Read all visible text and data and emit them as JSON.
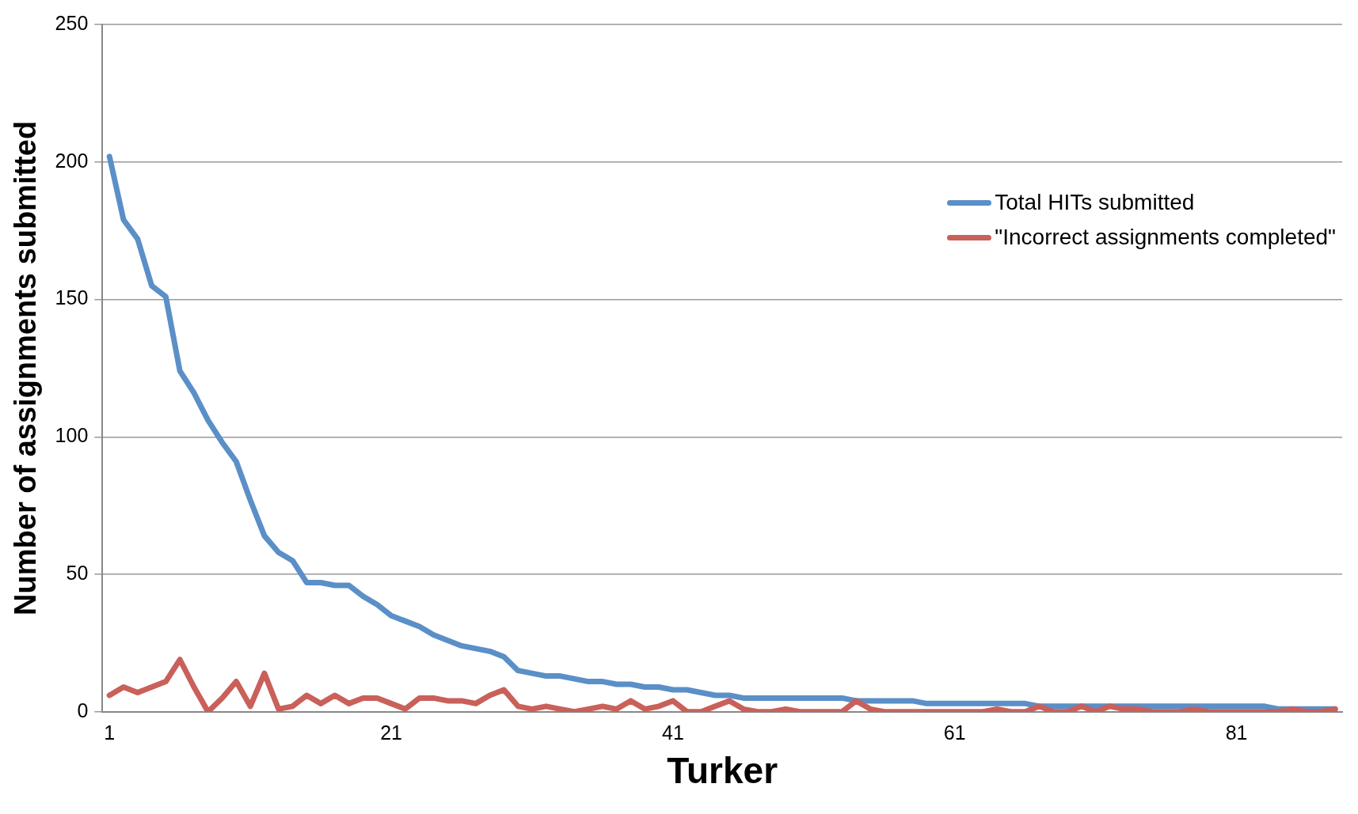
{
  "chart_data": {
    "type": "line",
    "xlabel": "Turker",
    "ylabel": "Number of assignments submitted",
    "categories": [
      "1",
      null,
      null,
      null,
      null,
      null,
      null,
      null,
      null,
      null,
      null,
      null,
      null,
      null,
      null,
      null,
      null,
      null,
      null,
      null,
      "21",
      null,
      null,
      null,
      null,
      null,
      null,
      null,
      null,
      null,
      null,
      null,
      null,
      null,
      null,
      null,
      null,
      null,
      null,
      null,
      "41",
      null,
      null,
      null,
      null,
      null,
      null,
      null,
      null,
      null,
      null,
      null,
      null,
      null,
      null,
      null,
      null,
      null,
      null,
      null,
      "61",
      null,
      null,
      null,
      null,
      null,
      null,
      null,
      null,
      null,
      null,
      null,
      null,
      null,
      null,
      null,
      null,
      null,
      null,
      null,
      "81",
      null,
      null,
      null,
      null,
      null,
      null,
      null
    ],
    "series": [
      {
        "name": "Total HITs submitted",
        "color": "#5b8fc7",
        "values": [
          202,
          179,
          172,
          155,
          151,
          124,
          116,
          106,
          98,
          91,
          77,
          64,
          58,
          55,
          47,
          47,
          46,
          46,
          42,
          39,
          35,
          33,
          31,
          28,
          26,
          24,
          23,
          22,
          20,
          15,
          14,
          13,
          13,
          12,
          11,
          11,
          10,
          10,
          9,
          9,
          8,
          8,
          7,
          6,
          6,
          5,
          5,
          5,
          5,
          5,
          5,
          5,
          5,
          4,
          4,
          4,
          4,
          4,
          3,
          3,
          3,
          3,
          3,
          3,
          3,
          3,
          2,
          2,
          2,
          2,
          2,
          2,
          2,
          2,
          2,
          2,
          2,
          2,
          2,
          2,
          2,
          2,
          2,
          1,
          1,
          1,
          1,
          1
        ]
      },
      {
        "name": "\"Incorrect assignments completed\"",
        "color": "#c9605a",
        "values": [
          6,
          9,
          7,
          9,
          11,
          19,
          9,
          0,
          5,
          11,
          2,
          14,
          1,
          2,
          6,
          3,
          6,
          3,
          5,
          5,
          3,
          1,
          5,
          5,
          4,
          4,
          3,
          6,
          8,
          2,
          1,
          2,
          1,
          0,
          1,
          2,
          1,
          4,
          1,
          2,
          4,
          0,
          0,
          2,
          4,
          1,
          0,
          0,
          1,
          0,
          0,
          0,
          0,
          4,
          1,
          0,
          0,
          0,
          0,
          0,
          0,
          0,
          0,
          1,
          0,
          0,
          2,
          0,
          0,
          2,
          0,
          2,
          1,
          1,
          0,
          0,
          0,
          1,
          0,
          0,
          0,
          0,
          0,
          0,
          1,
          0,
          0,
          1
        ]
      }
    ],
    "ylim": [
      0,
      250
    ],
    "yticks": [
      0,
      50,
      100,
      150,
      200,
      250
    ],
    "grid": "y",
    "legend": "right",
    "marker": "none",
    "line_style": "solid"
  }
}
